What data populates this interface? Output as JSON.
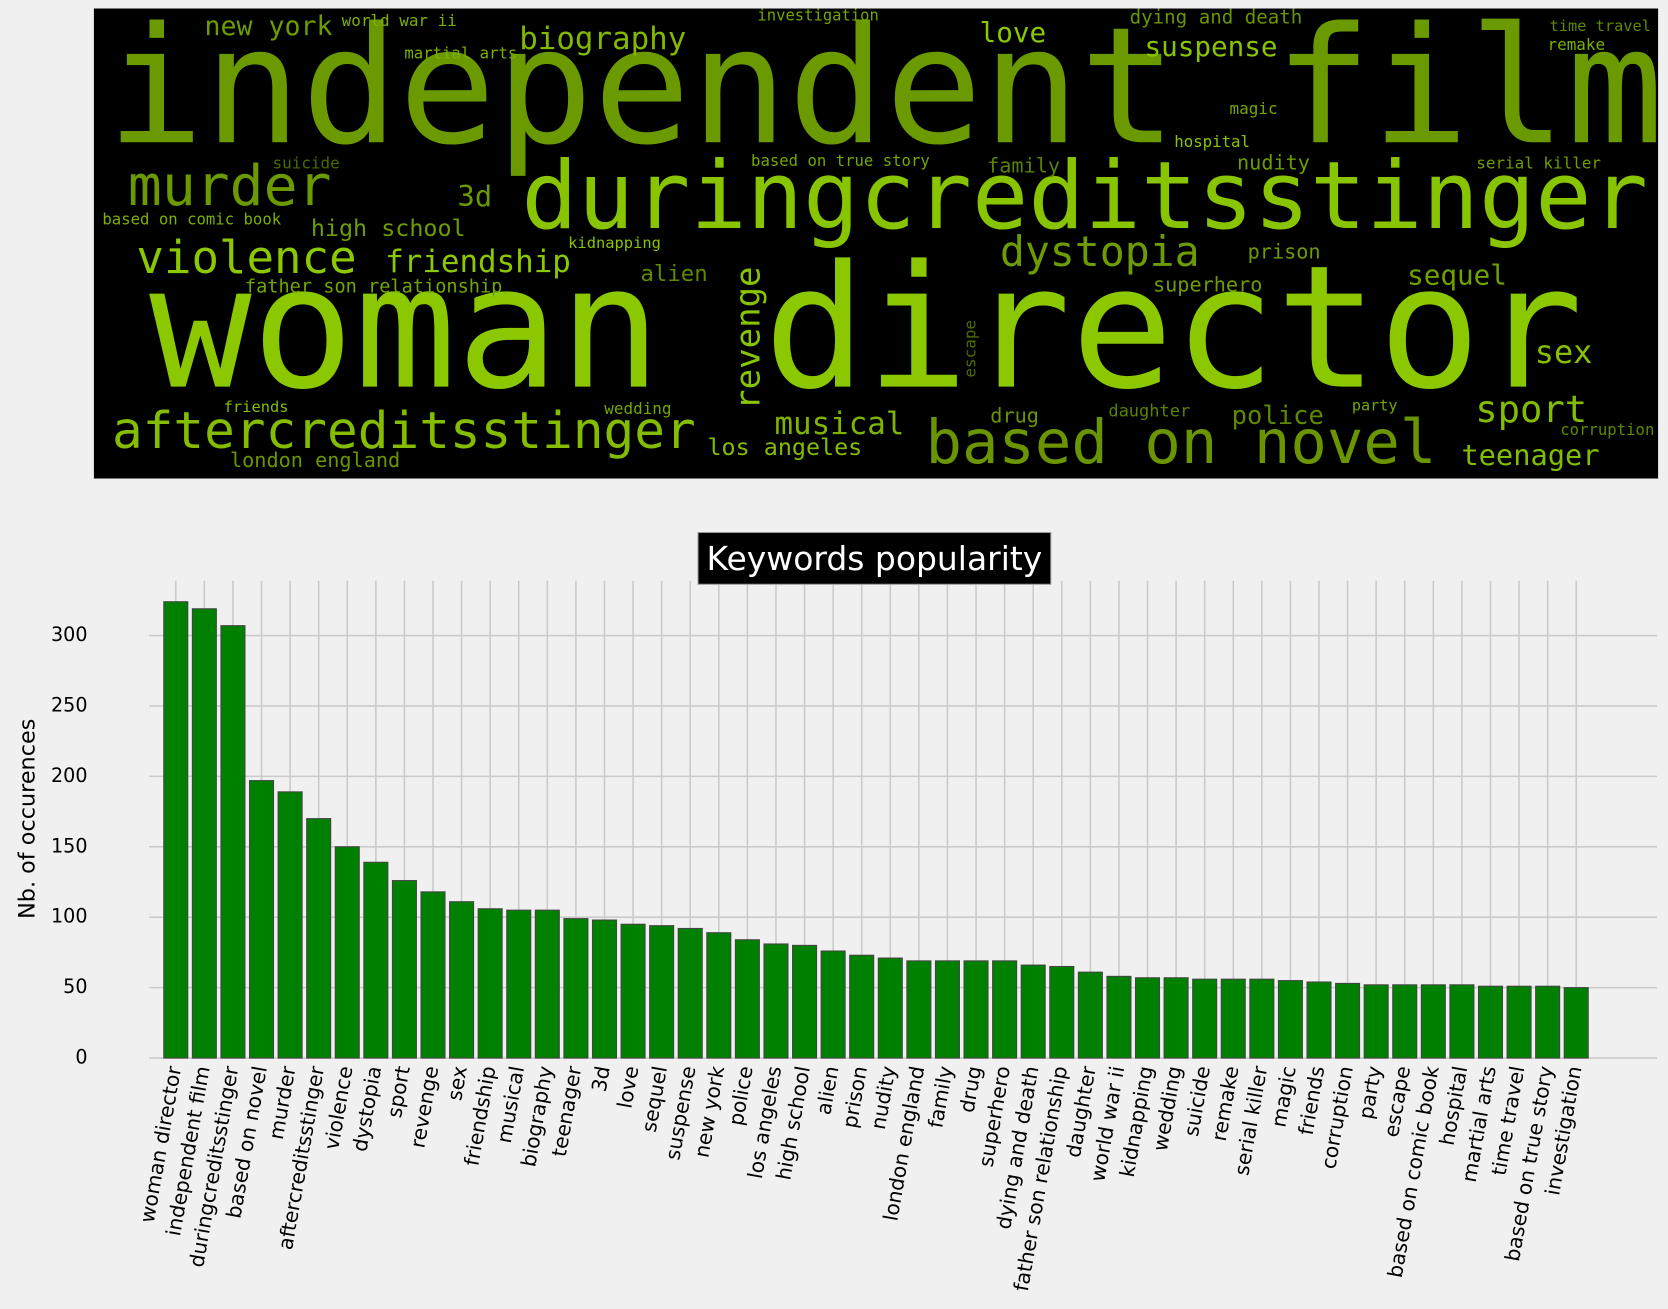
{
  "chart_data": {
    "type": "bar",
    "title": "Keywords popularity",
    "ylabel": "Nb. of occurences",
    "categories": [
      "woman director",
      "independent film",
      "duringcreditsstinger",
      "based on novel",
      "murder",
      "aftercreditsstinger",
      "violence",
      "dystopia",
      "sport",
      "revenge",
      "sex",
      "friendship",
      "musical",
      "biography",
      "teenager",
      "3d",
      "love",
      "sequel",
      "suspense",
      "new york",
      "police",
      "los angeles",
      "high school",
      "alien",
      "prison",
      "nudity",
      "london england",
      "family",
      "drug",
      "superhero",
      "dying and death",
      "father son relationship",
      "daughter",
      "world war ii",
      "kidnapping",
      "wedding",
      "suicide",
      "remake",
      "serial killer",
      "magic",
      "friends",
      "corruption",
      "party",
      "escape",
      "based on comic book",
      "hospital",
      "martial arts",
      "time travel",
      "based on true story",
      "investigation"
    ],
    "values": [
      324,
      319,
      307,
      197,
      189,
      170,
      150,
      139,
      126,
      118,
      111,
      106,
      105,
      105,
      99,
      98,
      95,
      94,
      92,
      89,
      84,
      81,
      80,
      76,
      73,
      71,
      69,
      69,
      69,
      69,
      66,
      65,
      61,
      58,
      57,
      57,
      56,
      56,
      56,
      55,
      54,
      53,
      52,
      52,
      52,
      52,
      51,
      51,
      51,
      50
    ],
    "color": "#008000",
    "ylim": [
      0,
      339
    ],
    "yticks": [
      0,
      50,
      100,
      150,
      200,
      250,
      300
    ],
    "grid": true
  }
}
